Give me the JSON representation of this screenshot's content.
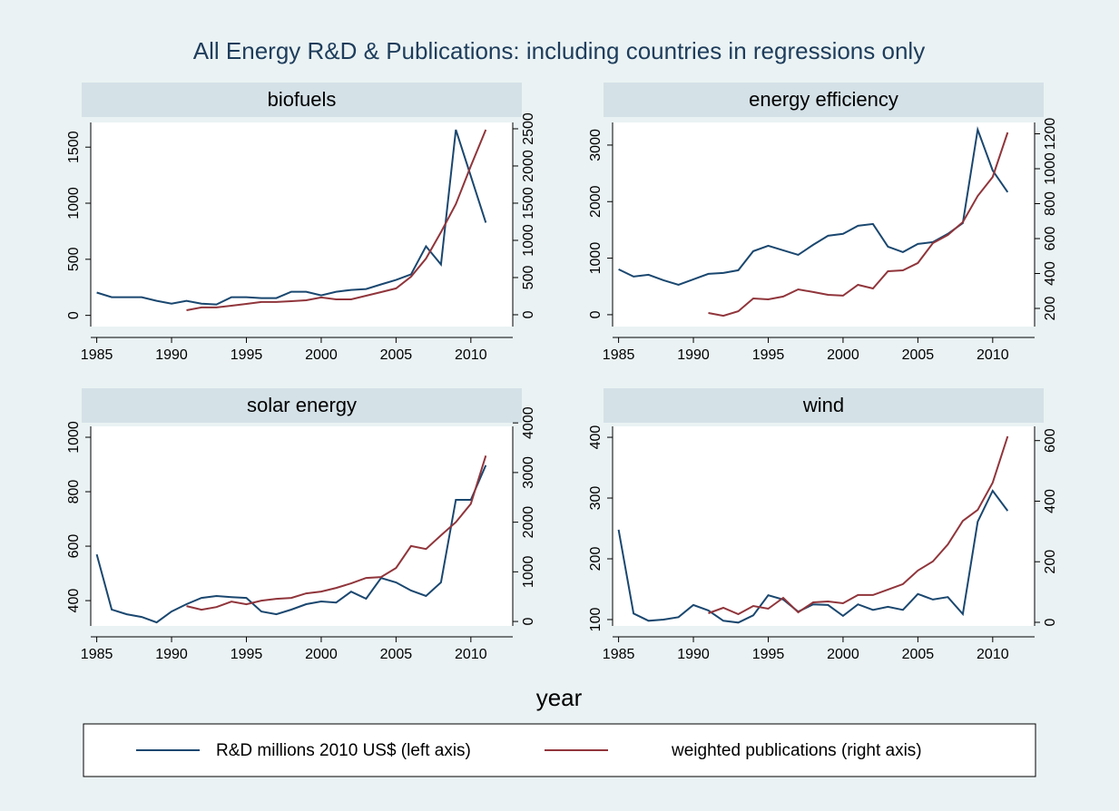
{
  "title": "All Energy R&D & Publications: including countries in regressions only",
  "xlabel": "year",
  "legend": {
    "items": [
      {
        "name": "R&D millions 2010 US$ (left axis)",
        "color": "#1a476f"
      },
      {
        "name": "weighted publications (right axis)",
        "color": "#90353b"
      }
    ]
  },
  "chart_data": [
    {
      "type": "line",
      "title": "biofuels",
      "x": [
        1985,
        1986,
        1987,
        1988,
        1989,
        1990,
        1991,
        1992,
        1993,
        1994,
        1995,
        1996,
        1997,
        1998,
        1999,
        2000,
        2001,
        2002,
        2003,
        2004,
        2005,
        2006,
        2007,
        2008,
        2009,
        2010,
        2011
      ],
      "xlim": [
        1984.6,
        2012.8
      ],
      "xticks": [
        1985,
        1990,
        1995,
        2000,
        2005,
        2010
      ],
      "ylim": [
        -100,
        1720
      ],
      "yticks": [
        0,
        500,
        1000,
        1500
      ],
      "y2lim": [
        -159,
        2585
      ],
      "y2ticks": [
        0,
        500,
        1000,
        1500,
        2000,
        2500
      ],
      "grid": false,
      "series": [
        {
          "color": "#1a476f",
          "values": [
            203,
            162,
            162,
            162,
            130,
            105,
            130,
            105,
            97,
            162,
            162,
            154,
            154,
            211,
            211,
            178,
            211,
            227,
            235,
            276,
            316,
            365,
            616,
            454,
            1655,
            1241,
            827
          ]
        },
        {
          "color": "#90353b",
          "axis": "y2",
          "values": [
            null,
            null,
            null,
            null,
            null,
            null,
            60,
            98,
            98,
            122,
            146,
            171,
            171,
            183,
            195,
            232,
            207,
            207,
            256,
            305,
            354,
            512,
            756,
            1110,
            1488,
            2000,
            2488
          ]
        }
      ]
    },
    {
      "type": "line",
      "title": "energy efficiency",
      "x": [
        1985,
        1986,
        1987,
        1988,
        1989,
        1990,
        1991,
        1992,
        1993,
        1994,
        1995,
        1996,
        1997,
        1998,
        1999,
        2000,
        2001,
        2002,
        2003,
        2004,
        2005,
        2006,
        2007,
        2008,
        2009,
        2010,
        2011
      ],
      "xlim": [
        1984.6,
        2012.8
      ],
      "xticks": [
        1985,
        1990,
        1995,
        2000,
        2005,
        2010
      ],
      "ylim": [
        -210,
        3400
      ],
      "yticks": [
        0,
        1000,
        2000,
        3000
      ],
      "y2lim": [
        96,
        1265
      ],
      "y2ticks": [
        200,
        400,
        600,
        800,
        1000,
        1200
      ],
      "grid": false,
      "series": [
        {
          "color": "#1a476f",
          "values": [
            802,
            674,
            706,
            610,
            530,
            626,
            722,
            738,
            786,
            1124,
            1220,
            1140,
            1059,
            1236,
            1396,
            1429,
            1573,
            1605,
            1204,
            1108,
            1252,
            1284,
            1429,
            1621,
            3274,
            2552,
            2167
          ]
        },
        {
          "color": "#90353b",
          "axis": "y2",
          "values": [
            null,
            null,
            null,
            null,
            null,
            null,
            174,
            158,
            184,
            257,
            252,
            268,
            309,
            294,
            278,
            273,
            335,
            314,
            413,
            418,
            460,
            574,
            621,
            694,
            844,
            953,
            1208
          ]
        }
      ]
    },
    {
      "type": "line",
      "title": "solar energy",
      "x": [
        1985,
        1986,
        1987,
        1988,
        1989,
        1990,
        1991,
        1992,
        1993,
        1994,
        1995,
        1996,
        1997,
        1998,
        1999,
        2000,
        2001,
        2002,
        2003,
        2004,
        2005,
        2006,
        2007,
        2008,
        2009,
        2010,
        2011
      ],
      "xlim": [
        1984.6,
        2012.8
      ],
      "xticks": [
        1985,
        1990,
        1995,
        2000,
        2005,
        2010
      ],
      "ylim": [
        307,
        1040
      ],
      "yticks": [
        400,
        600,
        800,
        1000
      ],
      "y2lim": [
        -90,
        3930
      ],
      "y2ticks": [
        0,
        1000,
        2000,
        3000,
        4000
      ],
      "grid": false,
      "series": [
        {
          "color": "#1a476f",
          "values": [
            570,
            367,
            350,
            340,
            320,
            360,
            387,
            410,
            417,
            413,
            410,
            360,
            350,
            367,
            387,
            397,
            393,
            433,
            407,
            483,
            467,
            437,
            417,
            467,
            770,
            770,
            897
          ]
        },
        {
          "color": "#90353b",
          "axis": "y2",
          "values": [
            null,
            null,
            null,
            null,
            null,
            null,
            310,
            237,
            290,
            400,
            347,
            420,
            457,
            475,
            566,
            603,
            676,
            767,
            877,
            895,
            1078,
            1520,
            1460,
            1735,
            2000,
            2370,
            3340
          ]
        }
      ]
    },
    {
      "type": "line",
      "title": "wind",
      "x": [
        1985,
        1986,
        1987,
        1988,
        1989,
        1990,
        1991,
        1992,
        1993,
        1994,
        1995,
        1996,
        1997,
        1998,
        1999,
        2000,
        2001,
        2002,
        2003,
        2004,
        2005,
        2006,
        2007,
        2008,
        2009,
        2010,
        2011
      ],
      "xlim": [
        1984.6,
        2012.8
      ],
      "xticks": [
        1985,
        1990,
        1995,
        2000,
        2005,
        2010
      ],
      "ylim": [
        89.5,
        418
      ],
      "yticks": [
        100,
        200,
        300,
        400
      ],
      "y2lim": [
        -12,
        647
      ],
      "y2ticks": [
        0,
        200,
        400,
        600
      ],
      "grid": false,
      "series": [
        {
          "color": "#1a476f",
          "values": [
            248,
            110,
            98,
            100,
            104,
            124,
            115,
            98,
            95,
            107,
            140,
            133,
            113,
            125,
            124,
            106,
            125,
            116,
            121,
            116,
            142,
            133,
            137,
            109,
            261,
            312,
            279
          ]
        },
        {
          "color": "#90353b",
          "axis": "y2",
          "values": [
            null,
            null,
            null,
            null,
            null,
            null,
            30,
            48,
            27,
            54,
            45,
            81,
            33,
            66,
            69,
            63,
            90,
            90,
            108,
            126,
            171,
            201,
            257,
            335,
            371,
            461,
            614
          ]
        }
      ]
    }
  ]
}
